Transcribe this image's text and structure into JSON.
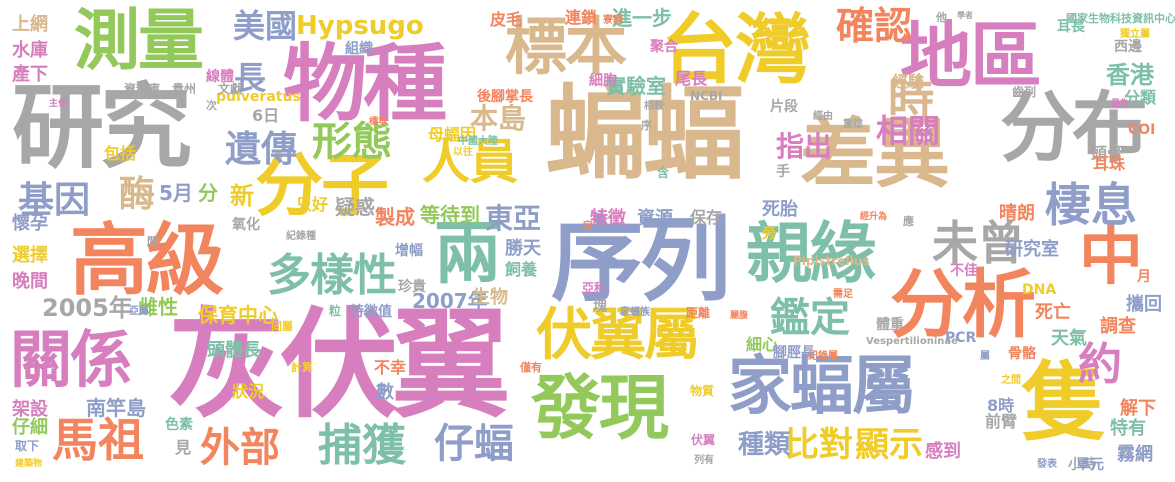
{
  "words": [
    {
      "text": "灰伏翼",
      "color": "#d77ebf"
    },
    {
      "text": "序列",
      "color": "#8f9ec9"
    },
    {
      "text": "蝙蝠",
      "color": "#d8b88c"
    },
    {
      "text": "物種",
      "color": "#d77ebf"
    },
    {
      "text": "研究",
      "color": "#a7a7a7"
    },
    {
      "text": "差異",
      "color": "#d8b88c"
    },
    {
      "text": "台灣",
      "color": "#f0cc2a"
    },
    {
      "text": "分布",
      "color": "#a7a7a7"
    },
    {
      "text": "分子",
      "color": "#f0cc2a"
    },
    {
      "text": "高級",
      "color": "#f2845e"
    },
    {
      "text": "地區",
      "color": "#d77ebf"
    },
    {
      "text": "測量",
      "color": "#93c95b"
    },
    {
      "text": "標本",
      "color": "#d8b88c"
    },
    {
      "text": "親緣",
      "color": "#7dbfa8"
    },
    {
      "text": "發現",
      "color": "#93c95b"
    },
    {
      "text": "家蝠屬",
      "color": "#8f9ec9"
    },
    {
      "text": "隻",
      "color": "#f0cc2a"
    },
    {
      "text": "分析",
      "color": "#f2845e"
    },
    {
      "text": "兩",
      "color": "#7dbfa8"
    },
    {
      "text": "中",
      "color": "#f2845e"
    },
    {
      "text": "關係",
      "color": "#d77ebf"
    },
    {
      "text": "伏翼屬",
      "color": "#f0cc2a"
    },
    {
      "text": "多樣性",
      "color": "#7dbfa8"
    },
    {
      "text": "棲息",
      "color": "#8f9ec9"
    },
    {
      "text": "未曾",
      "color": "#a7a7a7"
    },
    {
      "text": "確認",
      "color": "#f2845e"
    },
    {
      "text": "人員",
      "color": "#f0cc2a"
    },
    {
      "text": "馬祖",
      "color": "#f2845e"
    },
    {
      "text": "鑑定",
      "color": "#7dbfa8"
    },
    {
      "text": "捕獲",
      "color": "#7dbfa8"
    },
    {
      "text": "仔蝠",
      "color": "#8f9ec9"
    },
    {
      "text": "外部",
      "color": "#f2845e"
    },
    {
      "text": "形態",
      "color": "#93c95b"
    },
    {
      "text": "遺傳",
      "color": "#8f9ec9"
    },
    {
      "text": "比對",
      "color": "#f0cc2a"
    },
    {
      "text": "顯示",
      "color": "#f0cc2a"
    },
    {
      "text": "約",
      "color": "#d77ebf"
    },
    {
      "text": "時",
      "color": "#d8b88c"
    },
    {
      "text": "長",
      "color": "#8f9ec9"
    },
    {
      "text": "美國",
      "color": "#8f9ec9"
    },
    {
      "text": "Hypsugo",
      "color": "#f0cc2a"
    },
    {
      "text": "基因",
      "color": "#8f9ec9"
    },
    {
      "text": "酶",
      "color": "#d8b88c"
    },
    {
      "text": "相關",
      "color": "#d77ebf"
    },
    {
      "text": "本島",
      "color": "#d8b88c"
    },
    {
      "text": "指出",
      "color": "#d77ebf"
    },
    {
      "text": "東亞",
      "color": "#8f9ec9"
    },
    {
      "text": "香港",
      "color": "#7dbfa8"
    },
    {
      "text": "種類",
      "color": "#8f9ec9"
    },
    {
      "text": "2005年",
      "color": "#a7a7a7"
    },
    {
      "text": "2007年",
      "color": "#8f9ec9"
    },
    {
      "text": "實驗室",
      "color": "#7dbfa8"
    },
    {
      "text": "進一步",
      "color": "#7dbfa8"
    },
    {
      "text": "新",
      "color": "#f0cc2a"
    },
    {
      "text": "5月",
      "color": "#8f9ec9"
    },
    {
      "text": "分",
      "color": "#93c95b"
    },
    {
      "text": "疑惑",
      "color": "#a7a7a7"
    },
    {
      "text": "製成",
      "color": "#f2845e"
    },
    {
      "text": "等待到",
      "color": "#93c95b"
    },
    {
      "text": "研究室",
      "color": "#8f9ec9"
    },
    {
      "text": "保育中心",
      "color": "#f0cc2a"
    },
    {
      "text": "雌性",
      "color": "#93c95b"
    },
    {
      "text": "頭體長",
      "color": "#7dbfa8"
    },
    {
      "text": "南竿島",
      "color": "#8f9ec9"
    },
    {
      "text": "架設",
      "color": "#d77ebf"
    },
    {
      "text": "仔細",
      "color": "#93c95b"
    },
    {
      "text": "晚間",
      "color": "#d77ebf"
    },
    {
      "text": "選擇",
      "color": "#f0cc2a"
    },
    {
      "text": "懷孕",
      "color": "#8f9ec9"
    },
    {
      "text": "上網",
      "color": "#d8b88c"
    },
    {
      "text": "水庫",
      "color": "#d77ebf"
    },
    {
      "text": "產下",
      "color": "#d77ebf"
    },
    {
      "text": "包括",
      "color": "#f0cc2a"
    },
    {
      "text": "死胎",
      "color": "#8f9ec9"
    },
    {
      "text": "晴朗",
      "color": "#f2845e"
    },
    {
      "text": "死亡",
      "color": "#f2845e"
    },
    {
      "text": "攜回",
      "color": "#8f9ec9"
    },
    {
      "text": "調查",
      "color": "#f2845e"
    },
    {
      "text": "天氣",
      "color": "#7dbfa8"
    },
    {
      "text": "細心",
      "color": "#93c95b"
    },
    {
      "text": "特有",
      "color": "#7dbfa8"
    },
    {
      "text": "霧網",
      "color": "#8f9ec9"
    },
    {
      "text": "解下",
      "color": "#f2845e"
    },
    {
      "text": "感到",
      "color": "#d77ebf"
    },
    {
      "text": "8時",
      "color": "#8f9ec9"
    },
    {
      "text": "前臂",
      "color": "#a7a7a7"
    },
    {
      "text": "勝天",
      "color": "#8f9ec9"
    },
    {
      "text": "飼養",
      "color": "#7dbfa8"
    },
    {
      "text": "生物",
      "color": "#d8b88c"
    },
    {
      "text": "狀況",
      "color": "#f0cc2a"
    },
    {
      "text": "不幸",
      "color": "#f2845e"
    },
    {
      "text": "數",
      "color": "#8f9ec9"
    },
    {
      "text": "見",
      "color": "#a7a7a7"
    },
    {
      "text": "母蝠因",
      "color": "#f0cc2a"
    },
    {
      "text": "特徵",
      "color": "#d77ebf"
    },
    {
      "text": "資源",
      "color": "#8f9ec9"
    },
    {
      "text": "保存",
      "color": "#a7a7a7"
    },
    {
      "text": "尾長",
      "color": "#d77ebf"
    },
    {
      "text": "經驗",
      "color": "#d8b88c"
    },
    {
      "text": "分類",
      "color": "#7dbfa8"
    },
    {
      "text": "頭骨",
      "color": "#a7a7a7"
    },
    {
      "text": "耳珠",
      "color": "#f2845e"
    },
    {
      "text": "皮毛",
      "color": "#f2845e"
    },
    {
      "text": "連鎖",
      "color": "#f2845e"
    },
    {
      "text": "6日",
      "color": "#a7a7a7"
    },
    {
      "text": "只好",
      "color": "#f0cc2a"
    },
    {
      "text": "氧化",
      "color": "#a7a7a7"
    },
    {
      "text": "增幅",
      "color": "#8f9ec9"
    },
    {
      "text": "珍貴",
      "color": "#a7a7a7"
    },
    {
      "text": "特徵值",
      "color": "#8f9ec9"
    },
    {
      "text": "手",
      "color": "#a7a7a7"
    },
    {
      "text": "片段",
      "color": "#a7a7a7"
    },
    {
      "text": "不佳",
      "color": "#d77ebf"
    },
    {
      "text": "體重",
      "color": "#a7a7a7"
    },
    {
      "text": "腳脛長",
      "color": "#8f9ec9"
    },
    {
      "text": "骨骼",
      "color": "#f2845e"
    },
    {
      "text": "小時",
      "color": "#a7a7a7"
    },
    {
      "text": "單元",
      "color": "#8f9ec9"
    },
    {
      "text": "細胞",
      "color": "#d77ebf"
    },
    {
      "text": "聚合",
      "color": "#d77ebf"
    },
    {
      "text": "組織",
      "color": "#8f9ec9"
    },
    {
      "text": "線體",
      "color": "#d77ebf"
    },
    {
      "text": "後腳掌長",
      "color": "#f2845e"
    },
    {
      "text": "西邊",
      "color": "#a7a7a7"
    },
    {
      "text": "耳長",
      "color": "#7dbfa8"
    },
    {
      "text": "pulveratus",
      "color": "#f0cc2a"
    },
    {
      "text": "Pipistrellus",
      "color": "#d8b88c"
    },
    {
      "text": "PCR",
      "color": "#8f9ec9"
    },
    {
      "text": "DNA",
      "color": "#f0cc2a"
    },
    {
      "text": "COI",
      "color": "#f2845e"
    },
    {
      "text": "NCBI",
      "color": "#a7a7a7"
    },
    {
      "text": "Vespertilioninae",
      "color": "#a7a7a7"
    },
    {
      "text": "國家生物科技資訊中心",
      "color": "#7dbfa8"
    },
    {
      "text": "獨立屬",
      "color": "#f0cc2a"
    },
    {
      "text": "齒列",
      "color": "#a7a7a7"
    },
    {
      "text": "色素",
      "color": "#7dbfa8"
    },
    {
      "text": "取下",
      "color": "#8f9ec9"
    },
    {
      "text": "建築物",
      "color": "#f0cc2a"
    },
    {
      "text": "紀錄屬",
      "color": "#f2845e"
    },
    {
      "text": "紀錄種",
      "color": "#a7a7a7"
    },
    {
      "text": "貴州",
      "color": "#a7a7a7"
    },
    {
      "text": "資料庫",
      "color": "#a7a7a7"
    },
    {
      "text": "文獻",
      "color": "#a7a7a7"
    },
    {
      "text": "中國大陸",
      "color": "#7dbfa8"
    },
    {
      "text": "亞科",
      "color": "#d77ebf"
    },
    {
      "text": "家蝠族",
      "color": "#8f9ec9"
    },
    {
      "text": "距離",
      "color": "#f2845e"
    },
    {
      "text": "麗腹",
      "color": "#f2845e"
    },
    {
      "text": "物質",
      "color": "#f0cc2a"
    },
    {
      "text": "伏翼",
      "color": "#d77ebf"
    },
    {
      "text": "列有",
      "color": "#a7a7a7"
    },
    {
      "text": "發表",
      "color": "#8f9ec9"
    },
    {
      "text": "重建",
      "color": "#a7a7a7"
    },
    {
      "text": "經由",
      "color": "#a7a7a7"
    },
    {
      "text": "相較",
      "color": "#a7a7a7"
    },
    {
      "text": "亞屬",
      "color": "#8f9ec9"
    },
    {
      "text": "粒",
      "color": "#7dbfa8"
    },
    {
      "text": "塊",
      "color": "#a7a7a7"
    },
    {
      "text": "同屬",
      "color": "#f0cc2a"
    },
    {
      "text": "計算",
      "color": "#f0cc2a"
    },
    {
      "text": "僅有",
      "color": "#f2845e"
    },
    {
      "text": "需足",
      "color": "#f2845e"
    },
    {
      "text": "之間",
      "color": "#f0cc2a"
    },
    {
      "text": "屬",
      "color": "#8f9ec9"
    },
    {
      "text": "月",
      "color": "#f2845e"
    },
    {
      "text": "次",
      "color": "#a7a7a7"
    },
    {
      "text": "間",
      "color": "#a7a7a7"
    },
    {
      "text": "寮國",
      "color": "#f2845e"
    },
    {
      "text": "他",
      "color": "#a7a7a7"
    },
    {
      "text": "學者",
      "color": "#a7a7a7"
    },
    {
      "text": "定",
      "color": "#f2845e"
    },
    {
      "text": "含",
      "color": "#7dbfa8"
    },
    {
      "text": "序",
      "color": "#a7a7a7"
    },
    {
      "text": "以往",
      "color": "#f0cc2a"
    },
    {
      "text": "旁",
      "color": "#f0cc2a"
    },
    {
      "text": "應",
      "color": "#a7a7a7"
    },
    {
      "text": "標本",
      "color": "#f2845e"
    },
    {
      "text": "主任",
      "color": "#d77ebf"
    },
    {
      "text": "最為",
      "color": "#d77ebf"
    },
    {
      "text": "經升為",
      "color": "#f2845e"
    }
  ]
}
